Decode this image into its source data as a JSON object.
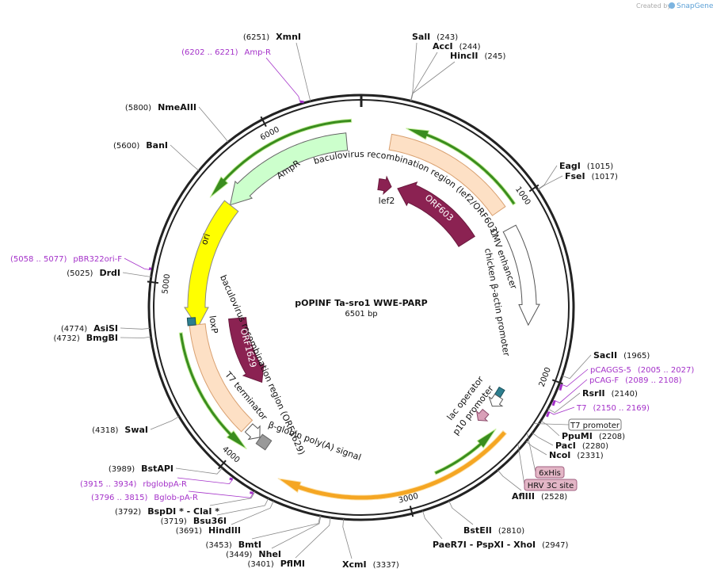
{
  "header": {
    "credit_prefix": "Created by",
    "credit_brand": "SnapGene"
  },
  "plasmid": {
    "name": "pOPINF Ta-sro1 WWE-PARP",
    "length": "6501 bp"
  },
  "scale_ticks": [
    "1000",
    "2000",
    "3000",
    "4000",
    "5000",
    "6000"
  ],
  "enzymes": [
    {
      "name": "XmnI",
      "position": "(6251)"
    },
    {
      "name": "SalI",
      "position": "(243)"
    },
    {
      "name": "AccI",
      "position": "(244)"
    },
    {
      "name": "HincII",
      "position": "(245)"
    },
    {
      "name": "NmeAIII",
      "position": "(5800)"
    },
    {
      "name": "BanI",
      "position": "(5600)"
    },
    {
      "name": "EagI",
      "position": "(1015)"
    },
    {
      "name": "FseI",
      "position": "(1017)"
    },
    {
      "name": "DrdI",
      "position": "(5025)"
    },
    {
      "name": "AsiSI",
      "position": "(4774)"
    },
    {
      "name": "BmgBI",
      "position": "(4732)"
    },
    {
      "name": "SacII",
      "position": "(1965)"
    },
    {
      "name": "RsrII",
      "position": "(2140)"
    },
    {
      "name": "SwaI",
      "position": "(4318)"
    },
    {
      "name": "PpuMI",
      "position": "(2208)"
    },
    {
      "name": "PacI",
      "position": "(2280)"
    },
    {
      "name": "NcoI",
      "position": "(2331)"
    },
    {
      "name": "BstAPI",
      "position": "(3989)"
    },
    {
      "name": "AflIII",
      "position": "(2528)"
    },
    {
      "name": "BspDI * - ClaI *",
      "position": "(3792)"
    },
    {
      "name": "Bsu36I",
      "position": "(3719)"
    },
    {
      "name": "HindIII",
      "position": "(3691)"
    },
    {
      "name": "BstEII",
      "position": "(2810)"
    },
    {
      "name": "BmtI",
      "position": "(3453)"
    },
    {
      "name": "PaeR7I - PspXI - XhoI",
      "position": "(2947)"
    },
    {
      "name": "NheI",
      "position": "(3449)"
    },
    {
      "name": "PflMI",
      "position": "(3401)"
    },
    {
      "name": "XcmI",
      "position": "(3337)"
    }
  ],
  "primers": [
    {
      "name": "Amp-R",
      "range": "(6202 .. 6221)"
    },
    {
      "name": "pBR322ori-F",
      "range": "(5058 .. 5077)"
    },
    {
      "name": "pCAGGS-5",
      "range": "(2005 .. 2027)"
    },
    {
      "name": "pCAG-F",
      "range": "(2089 .. 2108)"
    },
    {
      "name": "T7",
      "range": "(2150 .. 2169)"
    },
    {
      "name": "rbglobpA-R",
      "range": "(3915 .. 3934)"
    },
    {
      "name": "Bglob-pA-R",
      "range": "(3796 .. 3815)"
    }
  ],
  "features": [
    "AmpR",
    "baculovirus recombination region (lef2/ORF603)",
    "lef2",
    "ORF603",
    "CMV enhancer",
    "chicken β-actin promoter",
    "ori",
    "baculovirus recombination region (ORF1629)",
    "loxP",
    "ORF1629",
    "T7 terminator",
    "β-globin poly(A) signal",
    "lac operator",
    "p10 promoter"
  ],
  "boxed_features": [
    "T7 promoter",
    "6xHis",
    "HRV 3C site"
  ]
}
